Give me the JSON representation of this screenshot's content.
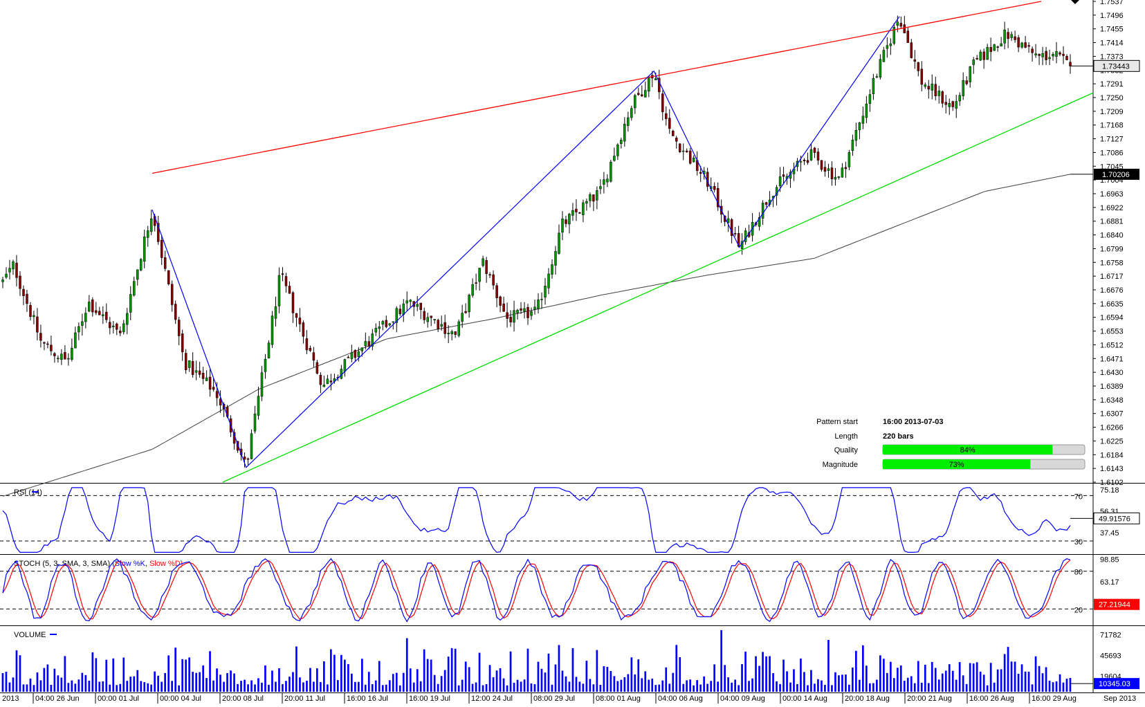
{
  "chart_data": {
    "type": "candlestick",
    "main": {
      "y_ticks": [
        "1.7537",
        "1.7496",
        "1.7455",
        "1.7414",
        "1.7373",
        "1.7332",
        "1.7291",
        "1.7250",
        "1.7209",
        "1.7168",
        "1.7127",
        "1.7086",
        "1.7045",
        "1.7004",
        "1.6963",
        "1.6922",
        "1.6881",
        "1.6840",
        "1.6799",
        "1.6758",
        "1.6717",
        "1.6676",
        "1.6635",
        "1.6594",
        "1.6553",
        "1.6512",
        "1.6471",
        "1.6430",
        "1.6389",
        "1.6348",
        "1.6307",
        "1.6266",
        "1.6225",
        "1.6184",
        "1.6143",
        "1.6102"
      ],
      "ylim": [
        1.6102,
        1.7537
      ],
      "current_price": "1.73443",
      "ma_value": "1.70206",
      "ohlc_key_points": [
        {
          "time": "2013-06-21",
          "price": 1.675
        },
        {
          "time": "2013-07-03 16:00",
          "price": 1.6915
        },
        {
          "time": "2013-07-08",
          "price": 1.6146
        },
        {
          "time": "2013-08-02",
          "price": 1.7329
        },
        {
          "time": "2013-08-08",
          "price": 1.6803
        },
        {
          "time": "2013-08-20",
          "price": 1.7492
        },
        {
          "time": "2013-08-30",
          "price": 1.7344
        }
      ],
      "pattern_lines": {
        "resistance": {
          "color": "#ff0000",
          "from": {
            "time": "2013-07-03",
            "price": 1.7024
          },
          "to": {
            "time": "2013-08-27",
            "price": 1.7537
          }
        },
        "support": {
          "color": "#00dd00",
          "from": {
            "time": "2013-07-05",
            "price": 1.6102
          },
          "to": {
            "time": "2013-08-31",
            "price": 1.7253
          }
        },
        "zigzag": {
          "color": "#0000ff",
          "points": [
            1.6915,
            1.6146,
            1.7329,
            1.6803,
            1.7492
          ]
        }
      }
    },
    "x_labels": [
      "2013",
      "04:00 26 Jun",
      "00:00 01 Jul",
      "00:00 04 Jul",
      "20:00 08 Jul",
      "20:00 11 Jul",
      "16:00 16 Jul",
      "16:00 19 Jul",
      "12:00 24 Jul",
      "08:00 29 Jul",
      "08:00 01 Aug",
      "04:00 06 Aug",
      "04:00 09 Aug",
      "00:00 14 Aug",
      "20:00 18 Aug",
      "20:00 21 Aug",
      "16:00 26 Aug",
      "16:00 29 Aug",
      "Sep 2013"
    ],
    "rsi": {
      "title": "RSI (14)",
      "levels": [
        "70",
        "30"
      ],
      "ticks": [
        "75.18",
        "56.31",
        "37.45"
      ],
      "current": "49.91576",
      "ylim": [
        19,
        80
      ]
    },
    "stoch": {
      "title": "STOCH (5, 3, SMA, 3, SMA)",
      "k_label": "(Slow %K,",
      "d_label": "Slow %D)",
      "levels": [
        "80",
        "20"
      ],
      "ticks": [
        "98.85",
        "63.17"
      ],
      "current": "27.21944",
      "ylim": [
        -5,
        105
      ]
    },
    "volume": {
      "title": "VOLUME",
      "ticks": [
        "71782",
        "45693",
        "19604"
      ],
      "current": "10345.03",
      "ymax": 82000
    },
    "pattern_info": {
      "start_label": "Pattern start",
      "start_value": "16:00 2013-07-03",
      "length_label": "Length",
      "length_value": "220 bars",
      "quality_label": "Quality",
      "quality_value": "84%",
      "quality": 0.84,
      "magnitude_label": "Magnitude",
      "magnitude_value": "73%",
      "magnitude": 0.73
    },
    "colors": {
      "bull": "#009900",
      "bear": "#880000",
      "resistance": "#ff0000",
      "support": "#00dd00",
      "zigzag": "#0000ff",
      "ma": "#404040",
      "rsi": "#0000ff",
      "stoch_k": "#0000ff",
      "stoch_d": "#ff0000",
      "volume": "#0000ff",
      "bar_fill": "#00ee00"
    }
  }
}
